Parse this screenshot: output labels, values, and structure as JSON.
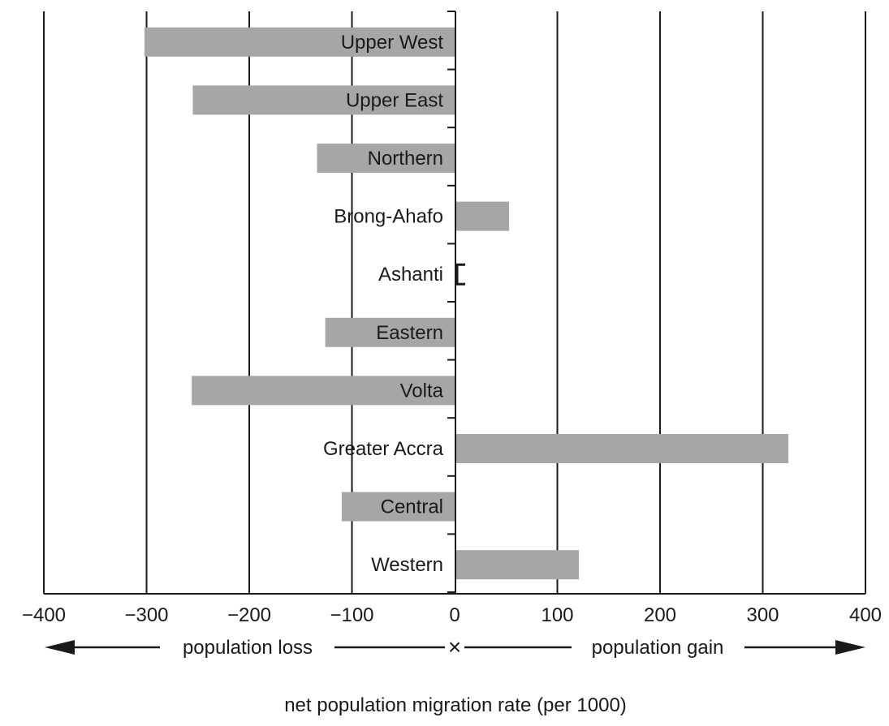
{
  "chart_data": {
    "type": "bar",
    "orientation": "horizontal",
    "categories": [
      "Upper West",
      "Upper East",
      "Northern",
      "Brong-Ahafo",
      "Ashanti",
      "Eastern",
      "Volta",
      "Greater Accra",
      "Central",
      "Western"
    ],
    "values": [
      -302,
      -255,
      -134,
      53,
      0,
      -126,
      -256,
      325,
      -110,
      121
    ],
    "xlim": [
      -400,
      400
    ],
    "xticks": [
      -400,
      -300,
      -200,
      -100,
      0,
      100,
      200,
      300,
      400
    ],
    "xtick_labels": [
      "−400",
      "−300",
      "−200",
      "−100",
      "0",
      "100",
      "200",
      "300",
      "400"
    ],
    "xlabel": "net population migration rate (per 1000)",
    "grid": "vertical gridlines at major ticks",
    "legend": "none",
    "annotations": {
      "loss_label": "population loss",
      "gain_label": "population gain",
      "center_mark": "×"
    },
    "colors": {
      "bar": "#a6a6a6",
      "grid": "#1a1a1a",
      "text": "#1a1a1a"
    }
  }
}
